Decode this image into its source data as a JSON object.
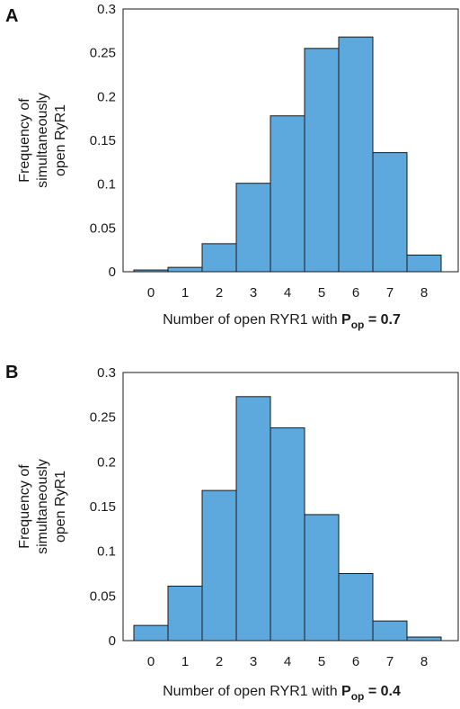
{
  "chart_data": [
    {
      "panel": "A",
      "type": "bar",
      "categories": [
        "0",
        "1",
        "2",
        "3",
        "4",
        "5",
        "6",
        "7",
        "8"
      ],
      "values": [
        0.002,
        0.005,
        0.032,
        0.101,
        0.178,
        0.255,
        0.268,
        0.136,
        0.019
      ],
      "ylabel_lines": [
        "Frequency of",
        "simultaneously",
        "open RyR1"
      ],
      "xlabel_prefix": "Number of open RYR1 with ",
      "xlabel_bold": "P",
      "xlabel_sub": "op",
      "xlabel_suffix": " = 0.7",
      "ylim": [
        0,
        0.3
      ],
      "yticks": [
        "0",
        "0.05",
        "0.1",
        "0.15",
        "0.2",
        "0.25",
        "0.3"
      ],
      "bar_color": "#5DA8DC"
    },
    {
      "panel": "B",
      "type": "bar",
      "categories": [
        "0",
        "1",
        "2",
        "3",
        "4",
        "5",
        "6",
        "7",
        "8"
      ],
      "values": [
        0.017,
        0.061,
        0.168,
        0.273,
        0.238,
        0.141,
        0.075,
        0.022,
        0.004
      ],
      "ylabel_lines": [
        "Frequency of",
        "simultaneously",
        "open RyR1"
      ],
      "xlabel_prefix": "Number of open RYR1 with ",
      "xlabel_bold": "P",
      "xlabel_sub": "op",
      "xlabel_suffix": " = 0.4",
      "ylim": [
        0,
        0.3
      ],
      "yticks": [
        "0",
        "0.05",
        "0.1",
        "0.15",
        "0.2",
        "0.25",
        "0.3"
      ],
      "bar_color": "#5DA8DC"
    }
  ]
}
